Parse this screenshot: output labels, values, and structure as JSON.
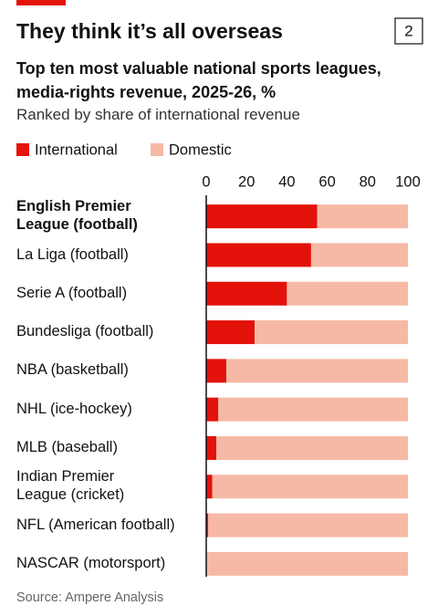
{
  "chart_data": {
    "type": "stacked-bar-horizontal",
    "figure_number": "2",
    "title": "They think it’s all overseas",
    "subtitle": "Top ten most valuable national sports leagues,\nmedia-rights revenue, 2025-26, %",
    "description": "Ranked by share of international revenue",
    "source": "Source: Ampere Analysis",
    "categories": [
      "English Premier\nLeague (football)",
      "La Liga (football)",
      "Serie A (football)",
      "Bundesliga (football)",
      "NBA (basketball)",
      "NHL (ice-hockey)",
      "MLB (baseball)",
      "Indian Premier\nLeague (cricket)",
      "NFL (American football)",
      "NASCAR (motorsport)"
    ],
    "series": [
      {
        "name": "International",
        "color": "#e3120b",
        "values": [
          55,
          52,
          40,
          24,
          10,
          6,
          5,
          3,
          1,
          0
        ]
      },
      {
        "name": "Domestic",
        "color": "#f6b9a5",
        "values": [
          45,
          48,
          60,
          76,
          90,
          94,
          95,
          97,
          99,
          100
        ]
      }
    ],
    "xlim": [
      0,
      100
    ],
    "xticks": [
      0,
      20,
      40,
      60,
      80,
      100
    ],
    "grid": false
  }
}
